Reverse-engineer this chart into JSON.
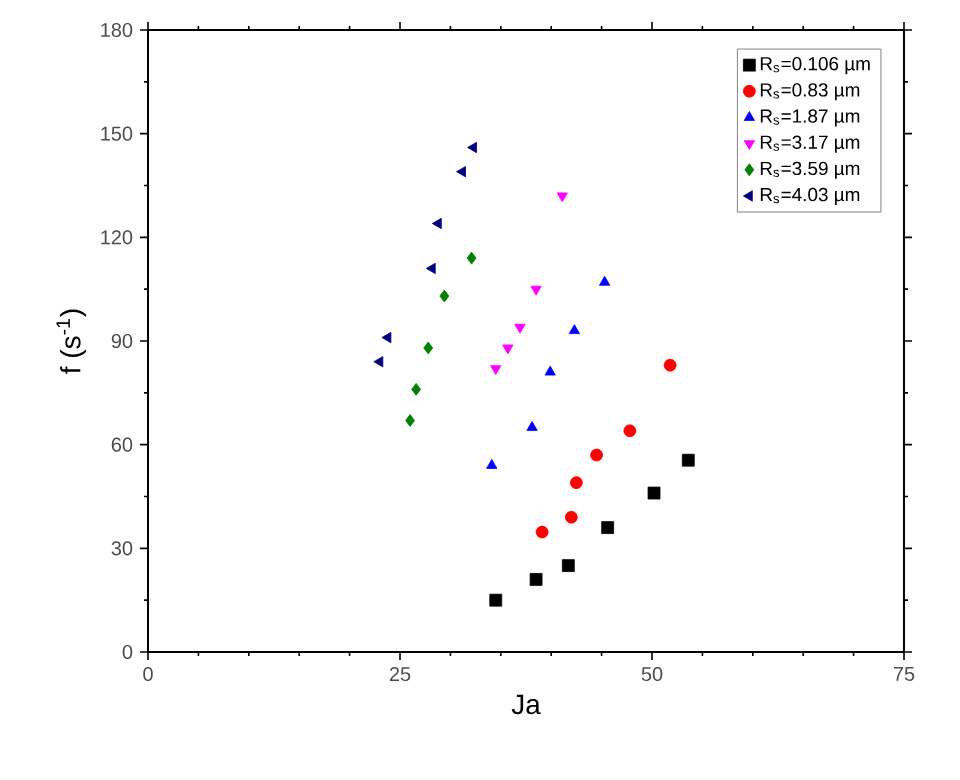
{
  "chart_data": {
    "type": "scatter",
    "xlabel": "Ja",
    "ylabel": "f (s$^{-1}$)",
    "xlim": [
      0,
      75
    ],
    "ylim": [
      0,
      180
    ],
    "xticks": [
      0,
      25,
      50,
      75
    ],
    "yticks": [
      0,
      30,
      60,
      90,
      120,
      150,
      180
    ],
    "legend": "top right",
    "grid": false,
    "series": [
      {
        "name": "R$_{s}$=0.106 µm",
        "color": "#000000",
        "marker": "square",
        "x": [
          34.5,
          38.5,
          41.7,
          45.6,
          50.2,
          53.6
        ],
        "values": [
          15,
          21,
          25,
          36,
          46,
          55.5
        ]
      },
      {
        "name": "R$_{s}$=0.83 µm",
        "color": "#ff0000",
        "marker": "circle",
        "x": [
          39.1,
          42,
          42.5,
          44.5,
          47.8,
          51.8
        ],
        "values": [
          34.7,
          39,
          49,
          57,
          64,
          83
        ]
      },
      {
        "name": "R$_{s}$=1.87 µm",
        "color": "#0000ff",
        "marker": "triangle",
        "x": [
          34.1,
          38.1,
          39.9,
          42.3,
          45.3
        ],
        "values": [
          54,
          65,
          81,
          93,
          107
        ]
      },
      {
        "name": "R$_{s}$=3.17 µm",
        "color": "#ff00ff",
        "marker": "triangle_down",
        "x": [
          34.5,
          35.7,
          36.9,
          38.5,
          41.1
        ],
        "values": [
          82,
          88,
          94,
          105,
          132
        ]
      },
      {
        "name": "R$_{s}$=3.59 µm",
        "color": "#008000",
        "marker": "diamond",
        "x": [
          26,
          26.6,
          27.8,
          29.4,
          32.1
        ],
        "values": [
          67,
          76,
          88,
          103,
          114
        ]
      },
      {
        "name": "R$_{s}$=4.03 µm",
        "color": "#000080",
        "marker": "triangle_left",
        "x": [
          23,
          23.8,
          28.2,
          28.8,
          31.2,
          32.3
        ],
        "values": [
          84,
          91,
          111,
          124,
          139,
          146
        ]
      }
    ]
  }
}
